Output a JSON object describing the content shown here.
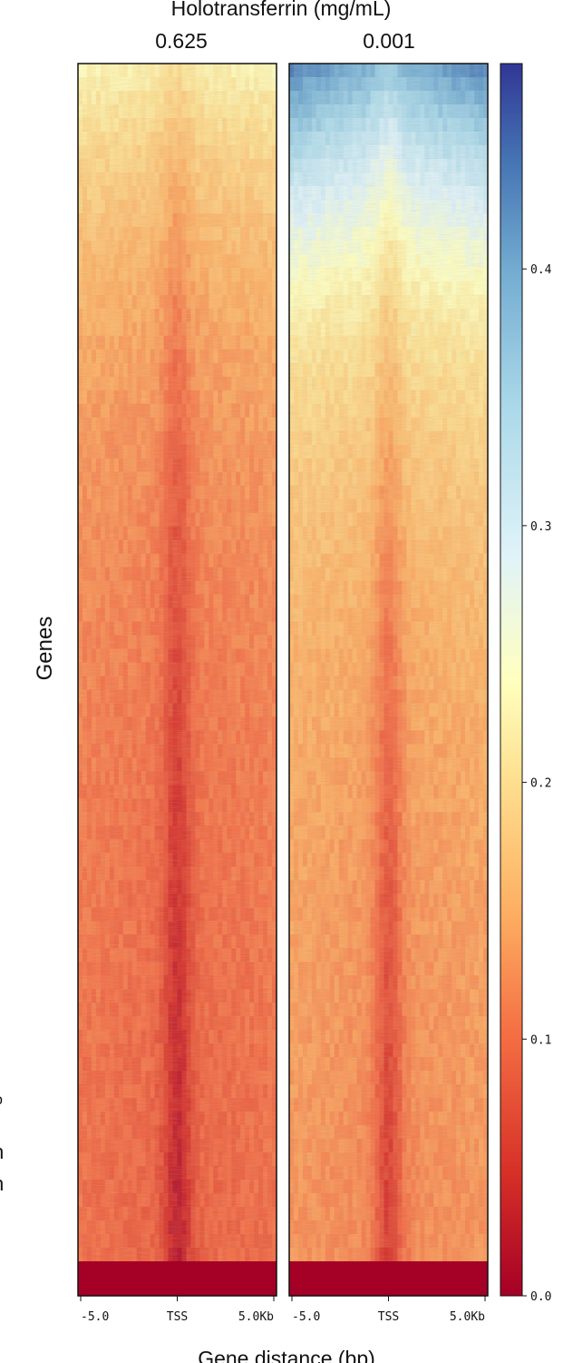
{
  "chart_data": {
    "type": "heatmap",
    "title": "Holotransferrin (mg/mL)",
    "xlabel": "Gene distance (bp)",
    "ylabel": "Genes",
    "panels": [
      {
        "name": "0.625",
        "top_level": 0.22,
        "body_level": 0.11,
        "tss_level": 0.06,
        "bottom_level": 0.0
      },
      {
        "name": "0.001",
        "top_level": 0.38,
        "body_level": 0.14,
        "tss_level": 0.07,
        "bottom_level": 0.0
      }
    ],
    "x_ticks": [
      "-5.0",
      "TSS",
      "5.0Kb"
    ],
    "colorbar": {
      "colormap": "RdYlBu",
      "range": [
        0.0,
        0.48
      ],
      "ticks": [
        0.0,
        0.1,
        0.2,
        0.3,
        0.4
      ],
      "tick_labels": [
        "0.0",
        "0.1",
        "0.2",
        "0.3",
        "0.4"
      ]
    },
    "left_edge_glyphs": [
      "b",
      "n",
      "n"
    ]
  }
}
